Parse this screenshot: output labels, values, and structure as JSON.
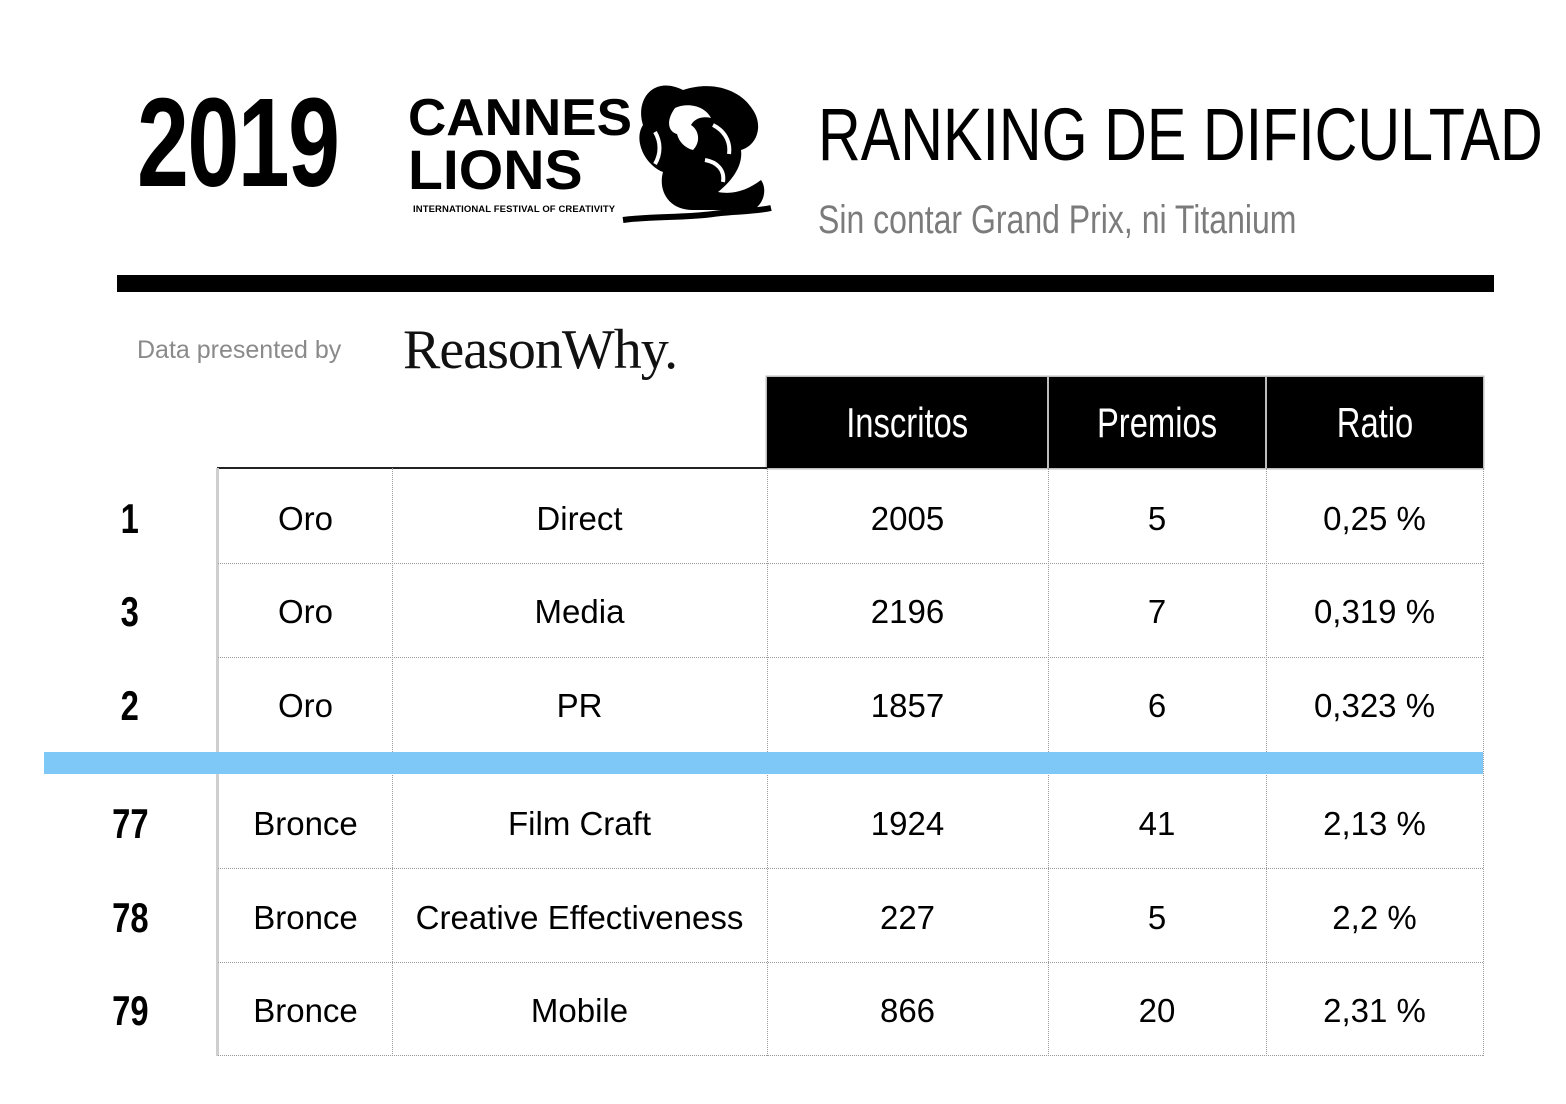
{
  "header": {
    "year": "2019",
    "logo_line1": "CANNES",
    "logo_line2": "LIONS",
    "logo_tagline": "INTERNATIONAL FESTIVAL OF CREATIVITY",
    "title": "RANKING DE DIFICULTAD",
    "subtitle": "Sin contar Grand Prix, ni Titanium"
  },
  "sponsor": {
    "label": "Data presented by",
    "brand": "ReasonWhy."
  },
  "table": {
    "columns": [
      "Inscritos",
      "Premios",
      "Ratio"
    ],
    "rows_top": [
      {
        "rank": "1",
        "award": "Oro",
        "category": "Direct",
        "inscritos": "2005",
        "premios": "5",
        "ratio": "0,25 %"
      },
      {
        "rank": "3",
        "award": "Oro",
        "category": "Media",
        "inscritos": "2196",
        "premios": "7",
        "ratio": "0,319 %"
      },
      {
        "rank": "2",
        "award": "Oro",
        "category": "PR",
        "inscritos": "1857",
        "premios": "6",
        "ratio": "0,323 %"
      }
    ],
    "rows_bottom": [
      {
        "rank": "77",
        "award": "Bronce",
        "category": "Film Craft",
        "inscritos": "1924",
        "premios": "41",
        "ratio": "2,13 %"
      },
      {
        "rank": "78",
        "award": "Bronce",
        "category": "Creative Effectiveness",
        "inscritos": "227",
        "premios": "5",
        "ratio": "2,2 %"
      },
      {
        "rank": "79",
        "award": "Bronce",
        "category": "Mobile",
        "inscritos": "866",
        "premios": "20",
        "ratio": "2,31 %"
      }
    ]
  },
  "colors": {
    "header_bg": "#000000",
    "separator_band": "#7dc8f6",
    "subtitle": "#7b7b7b"
  }
}
